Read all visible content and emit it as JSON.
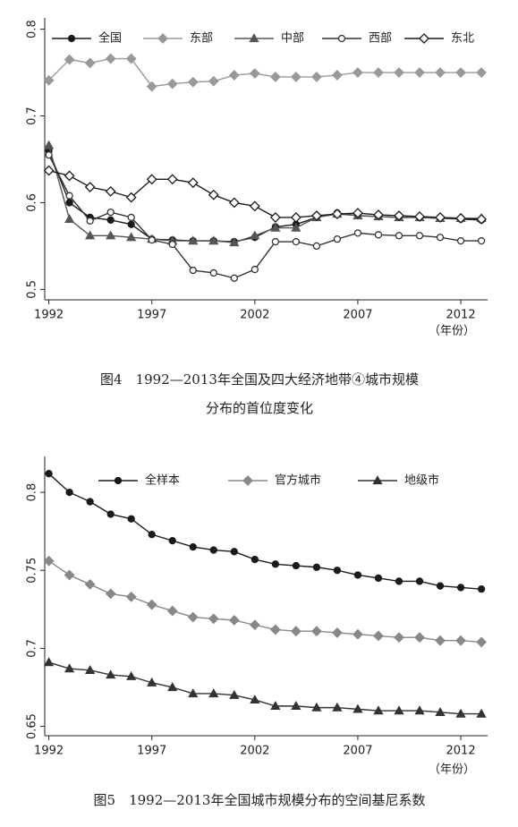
{
  "chart_data": [
    {
      "type": "line",
      "x_label": "（年份）",
      "caption": [
        "图4　1992—2013年全国及四大经济地带④城市规模",
        "分布的首位度变化"
      ],
      "x": [
        1992,
        1993,
        1994,
        1995,
        1996,
        1997,
        1998,
        1999,
        2000,
        2001,
        2002,
        2003,
        2004,
        2005,
        2006,
        2007,
        2008,
        2009,
        2010,
        2011,
        2012,
        2013
      ],
      "xlim": [
        1991.8,
        2013.3
      ],
      "xticks": [
        1992,
        1997,
        2002,
        2007,
        2012
      ],
      "ylim": [
        0.488,
        0.813
      ],
      "yticks": [
        0.5,
        0.6,
        0.7,
        0.8
      ],
      "series": [
        {
          "name": "全国",
          "color": "#1a1a1a",
          "marker": "circle",
          "values": [
            0.66,
            0.6,
            0.583,
            0.58,
            0.575,
            0.558,
            0.557,
            0.556,
            0.556,
            0.555,
            0.56,
            0.572,
            0.575,
            0.583,
            0.588,
            0.585,
            0.584,
            0.583,
            0.583,
            0.582,
            0.581,
            0.58
          ]
        },
        {
          "name": "东部",
          "color": "#999999",
          "marker": "diamond",
          "values": [
            0.741,
            0.765,
            0.761,
            0.766,
            0.766,
            0.734,
            0.737,
            0.739,
            0.74,
            0.747,
            0.749,
            0.745,
            0.745,
            0.745,
            0.747,
            0.75,
            0.75,
            0.75,
            0.75,
            0.75,
            0.75,
            0.75
          ]
        },
        {
          "name": "中部",
          "color": "#555555",
          "marker": "triangle",
          "values": [
            0.666,
            0.581,
            0.562,
            0.562,
            0.56,
            0.558,
            0.556,
            0.556,
            0.556,
            0.554,
            0.562,
            0.571,
            0.571,
            0.583,
            0.587,
            0.585,
            0.584,
            0.583,
            0.583,
            0.582,
            0.582,
            0.582
          ]
        },
        {
          "name": "西部",
          "color": "#333333",
          "marker": "circle-open",
          "values": [
            0.655,
            0.608,
            0.579,
            0.589,
            0.583,
            0.557,
            0.552,
            0.522,
            0.519,
            0.513,
            0.523,
            0.555,
            0.555,
            0.55,
            0.558,
            0.565,
            0.563,
            0.562,
            0.562,
            0.56,
            0.556,
            0.556
          ]
        },
        {
          "name": "东北",
          "color": "#1a1a1a",
          "marker": "diamond-open",
          "values": [
            0.637,
            0.631,
            0.618,
            0.613,
            0.606,
            0.627,
            0.627,
            0.623,
            0.609,
            0.6,
            0.596,
            0.583,
            0.583,
            0.585,
            0.587,
            0.588,
            0.586,
            0.585,
            0.584,
            0.583,
            0.582,
            0.581
          ]
        }
      ]
    },
    {
      "type": "line",
      "x_label": "（年份）",
      "caption": [
        "图5　1992—2013年全国城市规模分布的空间基尼系数"
      ],
      "x": [
        1992,
        1993,
        1994,
        1995,
        1996,
        1997,
        1998,
        1999,
        2000,
        2001,
        2002,
        2003,
        2004,
        2005,
        2006,
        2007,
        2008,
        2009,
        2010,
        2011,
        2012,
        2013
      ],
      "xlim": [
        1991.8,
        2013.3
      ],
      "xticks": [
        1992,
        1997,
        2002,
        2007,
        2012
      ],
      "ylim": [
        0.644,
        0.823
      ],
      "yticks": [
        0.65,
        0.7,
        0.75,
        0.8
      ],
      "series": [
        {
          "name": "全样本",
          "color": "#1a1a1a",
          "marker": "circle",
          "values": [
            0.812,
            0.8,
            0.794,
            0.786,
            0.783,
            0.773,
            0.769,
            0.765,
            0.763,
            0.762,
            0.757,
            0.754,
            0.753,
            0.752,
            0.75,
            0.747,
            0.745,
            0.743,
            0.743,
            0.74,
            0.739,
            0.738
          ]
        },
        {
          "name": "官方城市",
          "color": "#888888",
          "marker": "diamond",
          "values": [
            0.756,
            0.747,
            0.741,
            0.735,
            0.733,
            0.728,
            0.724,
            0.72,
            0.719,
            0.718,
            0.715,
            0.712,
            0.711,
            0.711,
            0.71,
            0.709,
            0.708,
            0.707,
            0.707,
            0.705,
            0.705,
            0.704
          ]
        },
        {
          "name": "地级市",
          "color": "#333333",
          "marker": "triangle",
          "values": [
            0.691,
            0.687,
            0.686,
            0.683,
            0.682,
            0.678,
            0.675,
            0.671,
            0.671,
            0.67,
            0.667,
            0.663,
            0.663,
            0.662,
            0.662,
            0.661,
            0.66,
            0.66,
            0.66,
            0.659,
            0.658,
            0.658
          ]
        }
      ]
    }
  ]
}
